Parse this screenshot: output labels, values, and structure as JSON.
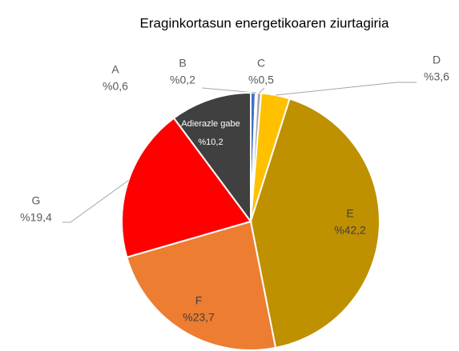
{
  "chart_data": {
    "type": "pie",
    "title": "Eraginkortasun energetikoaren ziurtagiria",
    "categories": [
      "A",
      "B",
      "C",
      "D",
      "E",
      "F",
      "G",
      "Adierazle gabe"
    ],
    "values": [
      0.6,
      0.2,
      0.5,
      3.6,
      42.2,
      23.7,
      19.4,
      10.2
    ],
    "value_labels": [
      "%0,6",
      "%0,2",
      "%0,5",
      "%3,6",
      "%42,2",
      "%23,7",
      "%19,4",
      "%10,2"
    ],
    "colors": [
      "#4472c4",
      "#1f3864",
      "#a5a5a5",
      "#ffc000",
      "#bf9000",
      "#ed7d31",
      "#ff0000",
      "#404040"
    ]
  }
}
